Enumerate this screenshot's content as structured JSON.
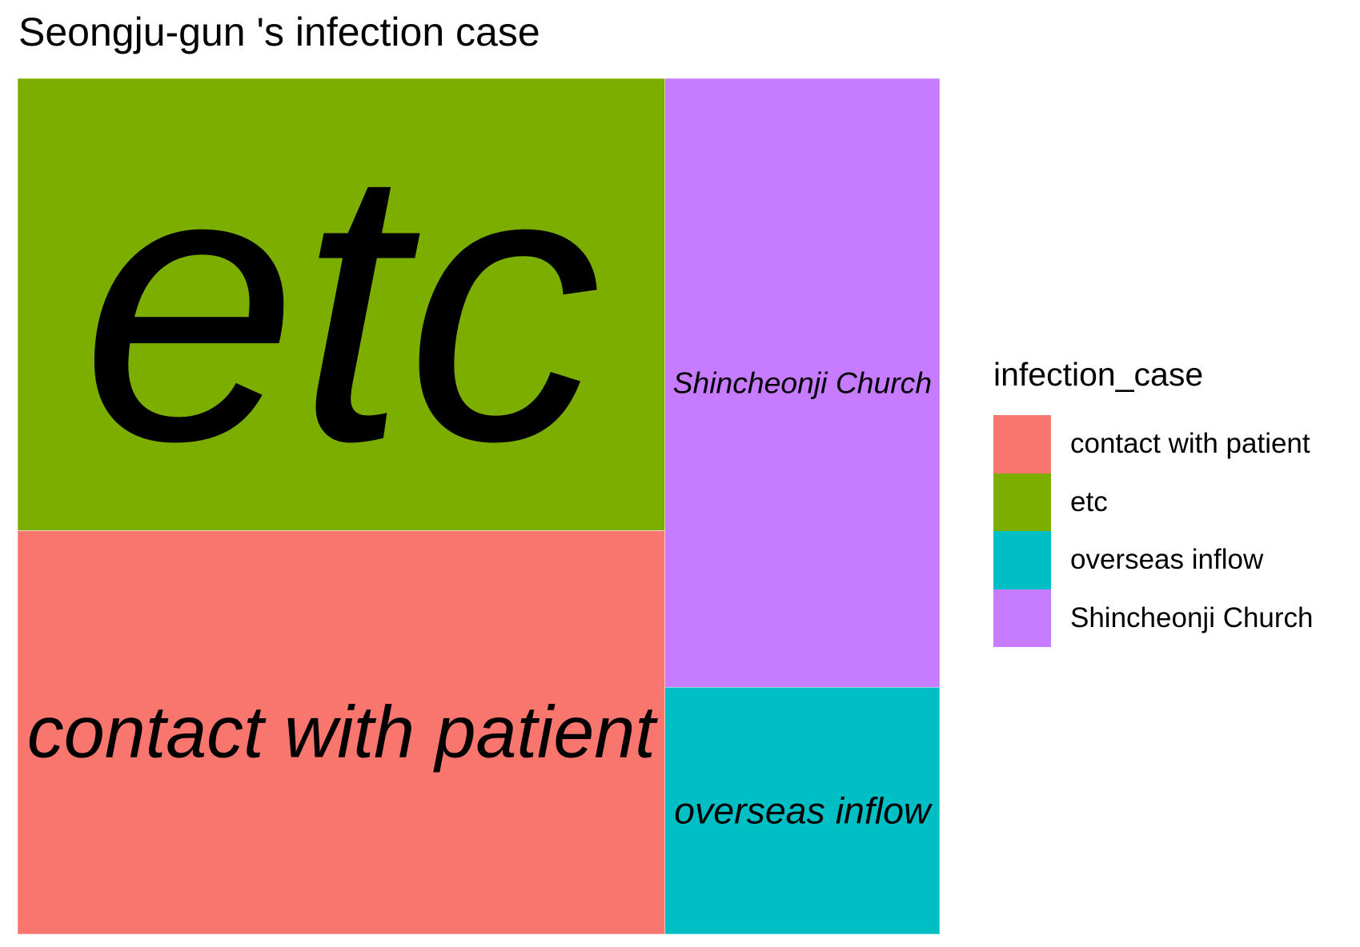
{
  "chart_data": {
    "type": "treemap",
    "title": "Seongju-gun 's infection case",
    "legend": {
      "title": "infection_case",
      "position": "right"
    },
    "series": [
      {
        "name": "contact with patient",
        "value": 0.331,
        "color": "#F8766D"
      },
      {
        "name": "etc",
        "value": 0.371,
        "color": "#7CAE00"
      },
      {
        "name": "overseas inflow",
        "value": 0.086,
        "color": "#00BFC4"
      },
      {
        "name": "Shincheonji Church",
        "value": 0.212,
        "color": "#C77CFF"
      }
    ]
  }
}
